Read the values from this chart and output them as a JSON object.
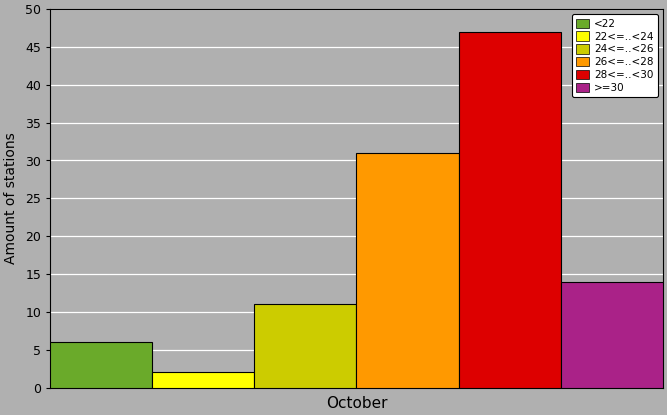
{
  "xlabel": "October",
  "ylabel": "Amount of stations",
  "ylim": [
    0,
    50
  ],
  "yticks": [
    0,
    5,
    10,
    15,
    20,
    25,
    30,
    35,
    40,
    45,
    50
  ],
  "bars": [
    {
      "label": "<22",
      "value": 6,
      "color": "#6aaa2a"
    },
    {
      "label": "22<=..<24",
      "value": 2,
      "color": "#ffff00"
    },
    {
      "label": "24<=..<26",
      "value": 11,
      "color": "#cccc00"
    },
    {
      "label": "26<=..<28",
      "value": 31,
      "color": "#ff9900"
    },
    {
      "label": "28<=..<30",
      "value": 47,
      "color": "#dd0000"
    },
    {
      "label": ">=30",
      "value": 14,
      "color": "#aa2288"
    }
  ],
  "background_color": "#b0b0b0",
  "legend_labels": [
    "<22",
    "22<=..<24",
    "24<=..<26",
    "26<=..<28",
    "28<=..<30",
    ">=30"
  ],
  "legend_colors": [
    "#6aaa2a",
    "#ffff00",
    "#cccc00",
    "#ff9900",
    "#dd0000",
    "#aa2288"
  ]
}
